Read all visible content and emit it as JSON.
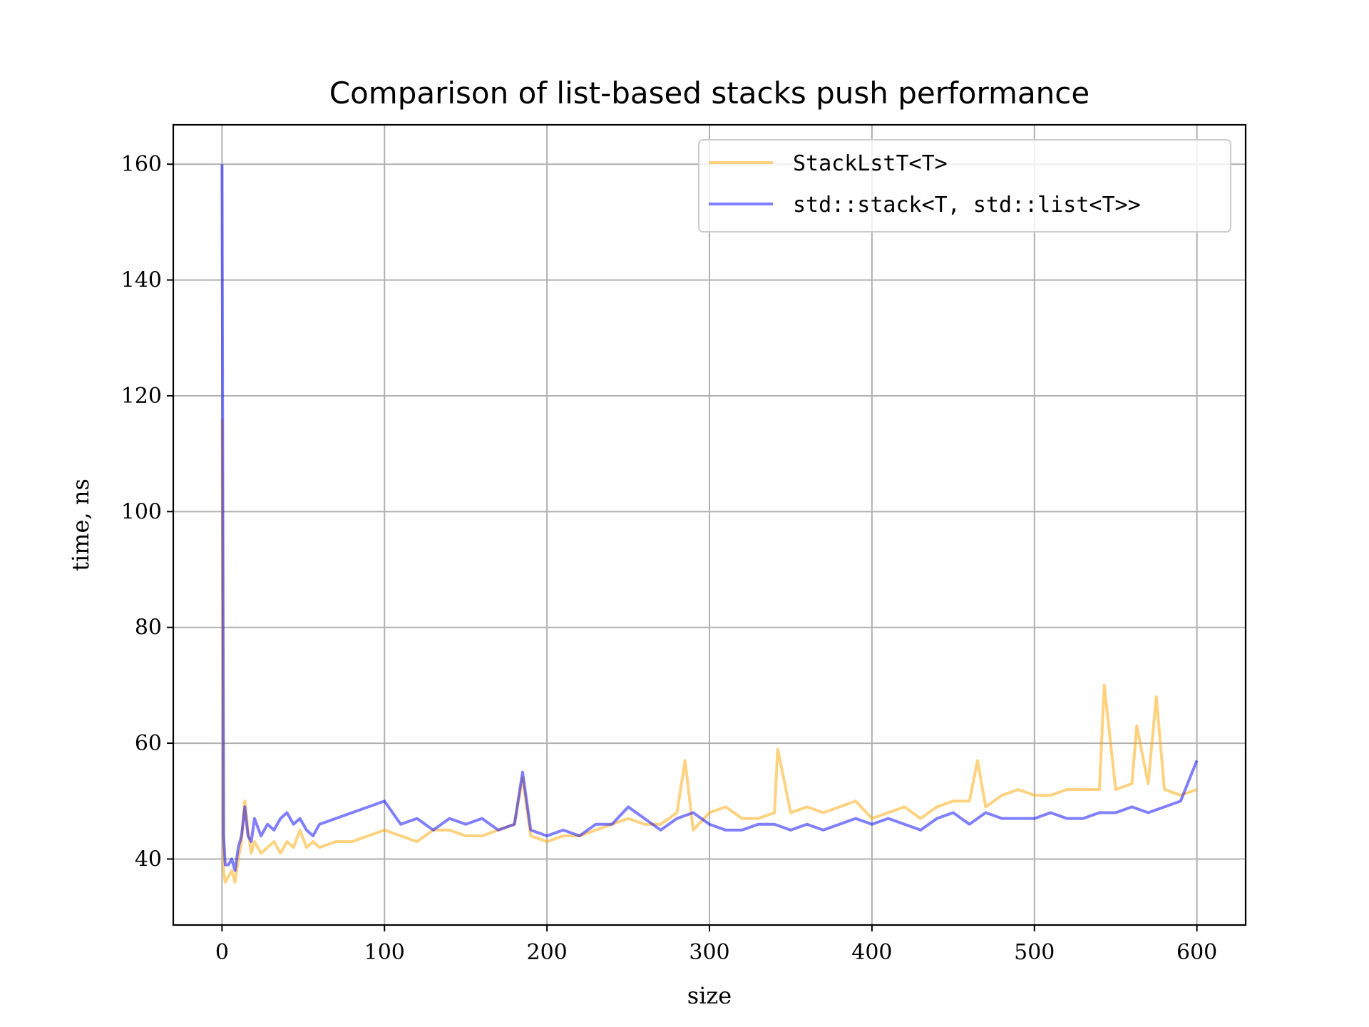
{
  "chart_data": {
    "type": "line",
    "title": "Comparison of list-based stacks push performance",
    "xlabel": "size",
    "ylabel": "time, ns",
    "xlim": [
      -30,
      630
    ],
    "ylim": [
      28.6,
      166.8
    ],
    "xticks": [
      0,
      100,
      200,
      300,
      400,
      500,
      600
    ],
    "yticks": [
      40,
      60,
      80,
      100,
      120,
      140,
      160
    ],
    "grid": true,
    "legend_position": "upper-right",
    "series": [
      {
        "name": "StackLstT<T>",
        "color": "#ffa500",
        "opacity": 0.5,
        "x": [
          0,
          1,
          2,
          4,
          6,
          8,
          10,
          12,
          14,
          16,
          18,
          20,
          24,
          28,
          32,
          36,
          40,
          44,
          48,
          52,
          56,
          60,
          70,
          80,
          90,
          100,
          110,
          120,
          130,
          140,
          150,
          160,
          170,
          180,
          185,
          190,
          200,
          210,
          220,
          230,
          240,
          250,
          260,
          270,
          280,
          285,
          290,
          300,
          310,
          320,
          330,
          340,
          342,
          350,
          360,
          370,
          380,
          390,
          400,
          410,
          420,
          430,
          440,
          450,
          460,
          465,
          470,
          480,
          490,
          500,
          510,
          520,
          530,
          540,
          543,
          550,
          560,
          563,
          570,
          575,
          580,
          590,
          600
        ],
        "y": [
          116,
          38,
          36,
          37,
          38,
          36,
          40,
          43,
          50,
          45,
          41,
          43,
          41,
          42,
          43,
          41,
          43,
          42,
          45,
          42,
          43,
          42,
          43,
          43,
          44,
          45,
          44,
          43,
          45,
          45,
          44,
          44,
          45,
          46,
          54,
          44,
          43,
          44,
          44,
          45,
          46,
          47,
          46,
          46,
          48,
          57,
          45,
          48,
          49,
          47,
          47,
          48,
          59,
          48,
          49,
          48,
          49,
          50,
          47,
          48,
          49,
          47,
          49,
          50,
          50,
          57,
          49,
          51,
          52,
          51,
          51,
          52,
          52,
          52,
          70,
          52,
          53,
          63,
          53,
          68,
          52,
          51,
          52
        ]
      },
      {
        "name": "std::stack<T, std::list<T>>",
        "color": "#0000ff",
        "opacity": 0.5,
        "x": [
          0,
          1,
          2,
          4,
          6,
          8,
          10,
          12,
          14,
          16,
          18,
          20,
          24,
          28,
          32,
          36,
          40,
          44,
          48,
          52,
          56,
          60,
          70,
          80,
          90,
          100,
          110,
          120,
          130,
          140,
          150,
          160,
          170,
          180,
          185,
          190,
          200,
          210,
          220,
          230,
          240,
          250,
          260,
          270,
          280,
          290,
          300,
          310,
          320,
          330,
          340,
          350,
          360,
          370,
          380,
          390,
          400,
          410,
          420,
          430,
          440,
          450,
          460,
          470,
          480,
          490,
          500,
          510,
          520,
          530,
          540,
          550,
          560,
          570,
          580,
          590,
          600
        ],
        "y": [
          160,
          44,
          39,
          39,
          40,
          38,
          42,
          44,
          49,
          44,
          43,
          47,
          44,
          46,
          45,
          47,
          48,
          46,
          47,
          45,
          44,
          46,
          47,
          48,
          49,
          50,
          46,
          47,
          45,
          47,
          46,
          47,
          45,
          46,
          55,
          45,
          44,
          45,
          44,
          46,
          46,
          49,
          47,
          45,
          47,
          48,
          46,
          45,
          45,
          46,
          46,
          45,
          46,
          45,
          46,
          47,
          46,
          47,
          46,
          45,
          47,
          48,
          46,
          48,
          47,
          47,
          47,
          48,
          47,
          47,
          48,
          48,
          49,
          48,
          49,
          50,
          57
        ]
      }
    ]
  }
}
